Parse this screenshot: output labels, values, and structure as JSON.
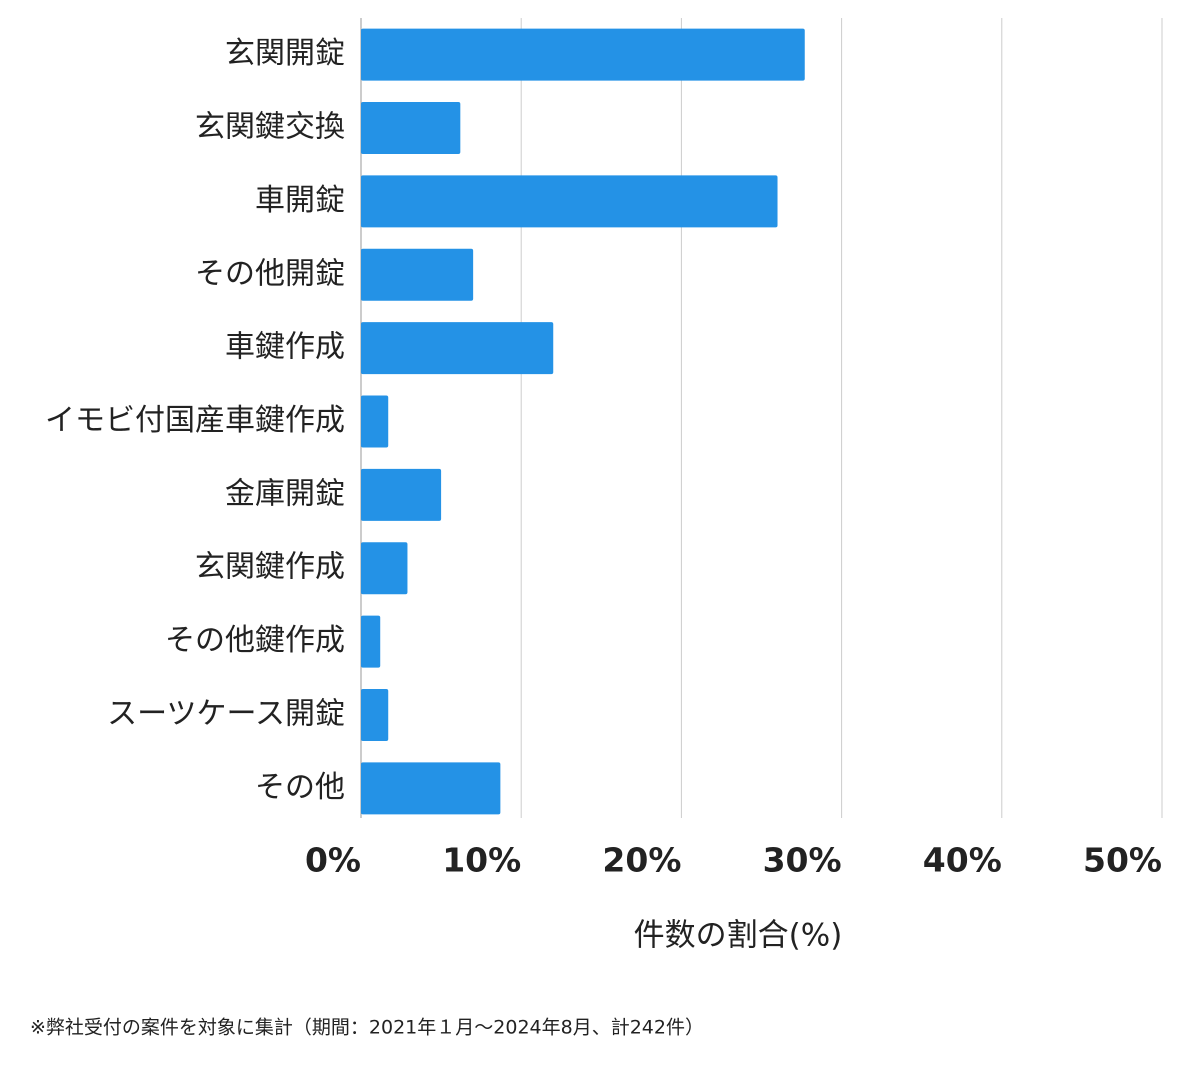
{
  "chart_data": {
    "type": "bar",
    "orientation": "horizontal",
    "categories": [
      "玄関開錠",
      "玄関鍵交換",
      "車開錠",
      "その他開錠",
      "車鍵作成",
      "イモビ付国産車鍵作成",
      "金庫開錠",
      "玄関鍵作成",
      "その他鍵作成",
      "スーツケース開錠",
      "その他"
    ],
    "values": [
      27.7,
      6.2,
      26.0,
      7.0,
      12.0,
      1.7,
      5.0,
      2.9,
      1.2,
      1.7,
      8.7
    ],
    "color": "#2492e6",
    "xlim": [
      0,
      50
    ],
    "xticks": [
      {
        "value": 0,
        "label": "0%"
      },
      {
        "value": 10,
        "label": "10%"
      },
      {
        "value": 20,
        "label": "20%"
      },
      {
        "value": 30,
        "label": "30%"
      },
      {
        "value": 40,
        "label": "40%"
      },
      {
        "value": 50,
        "label": "50%"
      }
    ],
    "x_label": "件数の割合(%)",
    "grid": true,
    "footnote": "※弊社受付の案件を対象に集計（期間：2021年１月〜2024年8月、計242件）"
  }
}
